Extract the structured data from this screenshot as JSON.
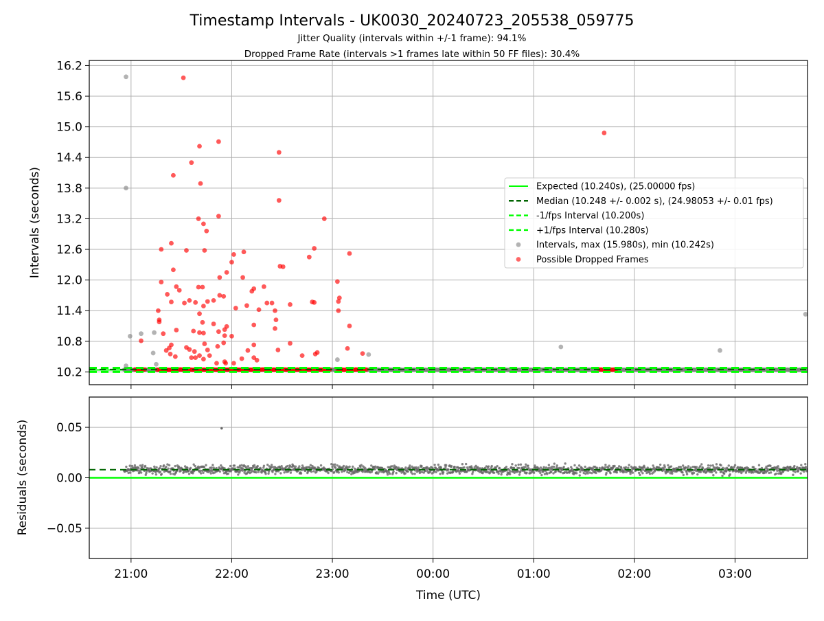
{
  "chart_data": {
    "type": "scatter",
    "title": "Timestamp Intervals - UK0030_20240723_205538_059775",
    "subtitle_1": "Jitter Quality (intervals within +/-1 frame): 94.1%",
    "subtitle_2": "Dropped Frame Rate (intervals >1 frames late within 50 FF files): 30.4%",
    "xlabel": "Time (UTC)",
    "x_ticks": [
      "21:00",
      "22:00",
      "23:00",
      "00:00",
      "01:00",
      "02:00",
      "03:00"
    ],
    "x_range_hours": [
      20.585,
      27.72
    ],
    "top_panel": {
      "ylabel": "Intervals (seconds)",
      "ylim": [
        9.95,
        16.3
      ],
      "y_ticks": [
        "10.2",
        "10.8",
        "11.4",
        "12.0",
        "12.6",
        "13.2",
        "13.8",
        "14.4",
        "15.0",
        "15.6",
        "16.2"
      ],
      "grid": true,
      "expected_interval": 10.24,
      "median_interval": 10.248,
      "minus_fps_interval": 10.2,
      "plus_fps_interval": 10.28,
      "gray_points": [
        [
          20.95,
          15.98
        ],
        [
          20.95,
          13.8
        ],
        [
          20.99,
          10.9
        ],
        [
          21.1,
          10.95
        ],
        [
          21.23,
          10.97
        ],
        [
          21.22,
          10.57
        ],
        [
          21.25,
          10.35
        ],
        [
          20.95,
          10.32
        ],
        [
          23.05,
          10.44
        ],
        [
          23.36,
          10.54
        ],
        [
          25.27,
          10.69
        ],
        [
          26.85,
          10.62
        ],
        [
          27.7,
          11.33
        ]
      ],
      "red_points": [
        [
          21.52,
          15.96
        ],
        [
          21.68,
          14.62
        ],
        [
          21.87,
          14.71
        ],
        [
          21.42,
          14.05
        ],
        [
          21.6,
          14.3
        ],
        [
          21.69,
          13.89
        ],
        [
          21.67,
          13.2
        ],
        [
          21.72,
          13.1
        ],
        [
          21.75,
          12.96
        ],
        [
          21.87,
          13.25
        ],
        [
          22.47,
          14.5
        ],
        [
          22.47,
          13.56
        ],
        [
          22.92,
          13.2
        ],
        [
          25.7,
          14.88
        ],
        [
          21.3,
          12.6
        ],
        [
          21.4,
          12.72
        ],
        [
          21.42,
          12.2
        ],
        [
          21.55,
          12.58
        ],
        [
          21.73,
          12.58
        ],
        [
          22.02,
          12.5
        ],
        [
          22.12,
          12.55
        ],
        [
          21.95,
          12.15
        ],
        [
          21.88,
          12.05
        ],
        [
          22.0,
          12.35
        ],
        [
          22.11,
          12.05
        ],
        [
          22.22,
          11.83
        ],
        [
          22.32,
          11.87
        ],
        [
          22.43,
          11.4
        ],
        [
          22.48,
          12.27
        ],
        [
          22.51,
          12.26
        ],
        [
          22.77,
          12.45
        ],
        [
          22.82,
          12.62
        ],
        [
          22.8,
          11.57
        ],
        [
          22.82,
          11.56
        ],
        [
          23.05,
          11.97
        ],
        [
          23.07,
          11.65
        ],
        [
          23.06,
          11.58
        ],
        [
          23.06,
          11.4
        ],
        [
          23.17,
          12.52
        ],
        [
          23.17,
          11.1
        ],
        [
          21.28,
          11.22
        ],
        [
          21.28,
          11.18
        ],
        [
          21.3,
          11.96
        ],
        [
          21.36,
          11.72
        ],
        [
          21.4,
          11.57
        ],
        [
          21.45,
          11.87
        ],
        [
          21.48,
          11.8
        ],
        [
          21.53,
          11.55
        ],
        [
          21.58,
          11.6
        ],
        [
          21.64,
          11.56
        ],
        [
          21.67,
          11.86
        ],
        [
          21.71,
          11.86
        ],
        [
          21.72,
          11.49
        ],
        [
          21.76,
          11.58
        ],
        [
          21.82,
          11.6
        ],
        [
          21.88,
          11.7
        ],
        [
          21.92,
          11.68
        ],
        [
          21.93,
          11.03
        ],
        [
          21.95,
          11.09
        ],
        [
          22.04,
          11.45
        ],
        [
          22.15,
          11.5
        ],
        [
          22.2,
          11.78
        ],
        [
          22.27,
          11.42
        ],
        [
          22.35,
          11.55
        ],
        [
          22.4,
          11.55
        ],
        [
          22.44,
          11.22
        ],
        [
          22.58,
          11.52
        ],
        [
          21.27,
          11.4
        ],
        [
          21.68,
          11.34
        ],
        [
          21.71,
          11.17
        ],
        [
          21.32,
          10.95
        ],
        [
          21.45,
          11.02
        ],
        [
          21.62,
          11.0
        ],
        [
          21.68,
          10.97
        ],
        [
          21.72,
          10.96
        ],
        [
          21.82,
          11.14
        ],
        [
          21.87,
          10.99
        ],
        [
          21.93,
          10.91
        ],
        [
          22.0,
          10.9
        ],
        [
          22.22,
          11.12
        ],
        [
          22.43,
          11.05
        ],
        [
          22.22,
          10.73
        ],
        [
          22.58,
          10.76
        ],
        [
          21.1,
          10.81
        ],
        [
          21.35,
          10.62
        ],
        [
          21.38,
          10.67
        ],
        [
          21.4,
          10.73
        ],
        [
          21.55,
          10.68
        ],
        [
          21.58,
          10.64
        ],
        [
          21.63,
          10.6
        ],
        [
          21.73,
          10.75
        ],
        [
          21.76,
          10.63
        ],
        [
          21.86,
          10.7
        ],
        [
          21.92,
          10.77
        ],
        [
          22.16,
          10.62
        ],
        [
          22.46,
          10.63
        ],
        [
          22.7,
          10.52
        ],
        [
          22.83,
          10.55
        ],
        [
          22.85,
          10.58
        ],
        [
          23.15,
          10.66
        ],
        [
          23.3,
          10.56
        ],
        [
          21.39,
          10.55
        ],
        [
          21.44,
          10.5
        ],
        [
          21.6,
          10.48
        ],
        [
          21.64,
          10.48
        ],
        [
          21.68,
          10.52
        ],
        [
          21.72,
          10.45
        ],
        [
          21.78,
          10.52
        ],
        [
          21.85,
          10.37
        ],
        [
          21.93,
          10.4
        ],
        [
          21.94,
          10.37
        ],
        [
          22.02,
          10.37
        ],
        [
          22.1,
          10.46
        ],
        [
          22.22,
          10.48
        ],
        [
          22.25,
          10.43
        ]
      ],
      "red_bands": [
        [
          21.04,
          21.14
        ],
        [
          21.26,
          22.45
        ],
        [
          22.46,
          22.98
        ],
        [
          23.05,
          23.35
        ],
        [
          25.65,
          25.82
        ]
      ]
    },
    "bottom_panel": {
      "ylabel": "Residuals (seconds)",
      "ylim": [
        -0.08,
        0.08
      ],
      "y_ticks": [
        "0.05",
        "0.00",
        "−0.05"
      ],
      "y_tick_values": [
        0.05,
        0.0,
        -0.05
      ],
      "median_residual": 0.008,
      "outlier_point": [
        21.9,
        0.049
      ],
      "residual_mean": 0.008,
      "residual_spread": 0.0045,
      "time_span": [
        20.93,
        27.72
      ]
    },
    "legend": {
      "placement": "center-right",
      "entries": [
        {
          "label": "Expected (10.240s), (25.00000 fps)",
          "style": "line",
          "color": "#00ff00"
        },
        {
          "label": "Median (10.248 +/- 0.002 s), (24.98053 +/- 0.01 fps)",
          "style": "dashed",
          "color": "#006400"
        },
        {
          "label": "-1/fps Interval (10.200s)",
          "style": "dashed",
          "color": "#00ff00"
        },
        {
          "label": "+1/fps Interval (10.280s)",
          "style": "dashed",
          "color": "#00ff00"
        },
        {
          "label": "Intervals, max (15.980s), min (10.242s)",
          "style": "marker",
          "color": "#808080"
        },
        {
          "label": "Possible Dropped Frames",
          "style": "marker",
          "color": "#ff0000"
        }
      ]
    },
    "colors": {
      "expected": "#00ff00",
      "median": "#006400",
      "gray_points": "#808080",
      "red_points": "#ff0000",
      "grid": "#b0b0b0"
    }
  }
}
